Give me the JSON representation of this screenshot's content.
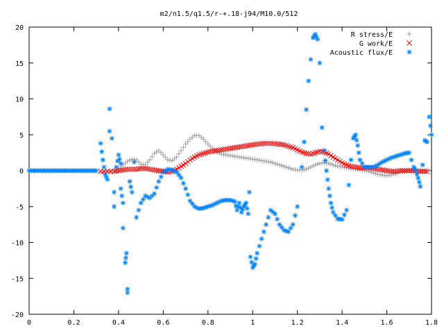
{
  "chart_data": {
    "type": "scatter",
    "title": "m2/n1.5/q1.5/r-+.18-j94/M10.0/512",
    "xlabel": "",
    "ylabel": "",
    "xlim": [
      0,
      1.8
    ],
    "ylim": [
      -20,
      20
    ],
    "x_ticks": [
      0,
      0.2,
      0.4,
      0.6,
      0.8,
      1,
      1.2,
      1.4,
      1.6,
      1.8
    ],
    "x_tick_labels": [
      "0",
      "0.2",
      "0.4",
      "0.6",
      "0.8",
      "1",
      "1.2",
      "1.4",
      "1.6",
      "1.8"
    ],
    "y_ticks": [
      -20,
      -15,
      -10,
      -5,
      0,
      5,
      10,
      15,
      20
    ],
    "y_tick_labels": [
      "-20",
      "-15",
      "-10",
      "-5",
      "0",
      "5",
      "10",
      "15",
      "20"
    ],
    "grid": false,
    "legend_position": "top-right",
    "series": [
      {
        "name": "R stress/E",
        "marker": "+",
        "color": "#a0a0a0",
        "points": [
          [
            0.32,
            -0.2
          ],
          [
            0.35,
            -0.1
          ],
          [
            0.38,
            0.0
          ],
          [
            0.4,
            0.3
          ],
          [
            0.42,
            0.8
          ],
          [
            0.44,
            1.3
          ],
          [
            0.46,
            1.6
          ],
          [
            0.48,
            1.5
          ],
          [
            0.5,
            0.9
          ],
          [
            0.52,
            0.8
          ],
          [
            0.54,
            1.5
          ],
          [
            0.56,
            2.4
          ],
          [
            0.58,
            2.8
          ],
          [
            0.6,
            2.2
          ],
          [
            0.62,
            1.5
          ],
          [
            0.64,
            1.4
          ],
          [
            0.66,
            1.9
          ],
          [
            0.68,
            2.8
          ],
          [
            0.7,
            3.7
          ],
          [
            0.72,
            4.4
          ],
          [
            0.74,
            4.9
          ],
          [
            0.76,
            4.9
          ],
          [
            0.78,
            4.4
          ],
          [
            0.8,
            3.7
          ],
          [
            0.82,
            3.1
          ],
          [
            0.84,
            2.6
          ],
          [
            0.86,
            2.3
          ],
          [
            0.88,
            2.2
          ],
          [
            0.9,
            2.1
          ],
          [
            0.92,
            2.0
          ],
          [
            0.94,
            1.9
          ],
          [
            0.96,
            1.8
          ],
          [
            0.98,
            1.7
          ],
          [
            1.0,
            1.6
          ],
          [
            1.02,
            1.5
          ],
          [
            1.04,
            1.4
          ],
          [
            1.06,
            1.3
          ],
          [
            1.08,
            1.2
          ],
          [
            1.1,
            1.0
          ],
          [
            1.12,
            0.8
          ],
          [
            1.14,
            0.6
          ],
          [
            1.16,
            0.4
          ],
          [
            1.18,
            0.2
          ],
          [
            1.2,
            0.1
          ],
          [
            1.22,
            0.05
          ],
          [
            1.24,
            0.2
          ],
          [
            1.26,
            0.5
          ],
          [
            1.28,
            0.8
          ],
          [
            1.3,
            1.0
          ],
          [
            1.32,
            1.1
          ],
          [
            1.34,
            1.0
          ],
          [
            1.36,
            0.8
          ],
          [
            1.38,
            0.6
          ],
          [
            1.4,
            0.5
          ],
          [
            1.42,
            0.4
          ],
          [
            1.44,
            0.3
          ],
          [
            1.46,
            0.2
          ],
          [
            1.48,
            0.1
          ],
          [
            1.5,
            0.0
          ],
          [
            1.52,
            -0.1
          ],
          [
            1.54,
            -0.3
          ],
          [
            1.56,
            -0.5
          ],
          [
            1.58,
            -0.6
          ],
          [
            1.6,
            -0.7
          ],
          [
            1.62,
            -0.6
          ],
          [
            1.64,
            -0.4
          ],
          [
            1.66,
            -0.2
          ],
          [
            1.68,
            0.0
          ],
          [
            1.7,
            0.1
          ],
          [
            1.72,
            0.0
          ],
          [
            1.74,
            0.0
          ],
          [
            1.76,
            0.0
          ],
          [
            1.78,
            0.0
          ]
        ]
      },
      {
        "name": "G work/E",
        "marker": "x",
        "color": "#ff0000",
        "points": [
          [
            0.32,
            -0.1
          ],
          [
            0.35,
            -0.1
          ],
          [
            0.38,
            -0.1
          ],
          [
            0.4,
            0.0
          ],
          [
            0.42,
            0.1
          ],
          [
            0.44,
            0.2
          ],
          [
            0.46,
            0.2
          ],
          [
            0.48,
            0.2
          ],
          [
            0.5,
            0.3
          ],
          [
            0.52,
            0.3
          ],
          [
            0.54,
            0.2
          ],
          [
            0.56,
            0.1
          ],
          [
            0.58,
            0.0
          ],
          [
            0.6,
            -0.1
          ],
          [
            0.62,
            -0.2
          ],
          [
            0.64,
            -0.1
          ],
          [
            0.66,
            0.2
          ],
          [
            0.68,
            0.6
          ],
          [
            0.7,
            1.0
          ],
          [
            0.72,
            1.5
          ],
          [
            0.74,
            1.9
          ],
          [
            0.76,
            2.2
          ],
          [
            0.78,
            2.4
          ],
          [
            0.8,
            2.6
          ],
          [
            0.82,
            2.7
          ],
          [
            0.84,
            2.8
          ],
          [
            0.86,
            2.9
          ],
          [
            0.88,
            3.0
          ],
          [
            0.9,
            3.1
          ],
          [
            0.92,
            3.2
          ],
          [
            0.94,
            3.3
          ],
          [
            0.96,
            3.4
          ],
          [
            0.98,
            3.5
          ],
          [
            1.0,
            3.6
          ],
          [
            1.02,
            3.7
          ],
          [
            1.04,
            3.75
          ],
          [
            1.06,
            3.8
          ],
          [
            1.08,
            3.8
          ],
          [
            1.1,
            3.75
          ],
          [
            1.12,
            3.7
          ],
          [
            1.14,
            3.6
          ],
          [
            1.16,
            3.4
          ],
          [
            1.18,
            3.2
          ],
          [
            1.2,
            2.9
          ],
          [
            1.22,
            2.6
          ],
          [
            1.24,
            2.4
          ],
          [
            1.26,
            2.3
          ],
          [
            1.28,
            2.5
          ],
          [
            1.3,
            2.7
          ],
          [
            1.32,
            2.6
          ],
          [
            1.34,
            2.3
          ],
          [
            1.36,
            1.9
          ],
          [
            1.38,
            1.5
          ],
          [
            1.4,
            1.1
          ],
          [
            1.42,
            0.8
          ],
          [
            1.44,
            0.6
          ],
          [
            1.46,
            0.5
          ],
          [
            1.48,
            0.4
          ],
          [
            1.5,
            0.4
          ],
          [
            1.52,
            0.4
          ],
          [
            1.54,
            0.3
          ],
          [
            1.56,
            0.2
          ],
          [
            1.58,
            0.1
          ],
          [
            1.6,
            0.0
          ],
          [
            1.62,
            -0.1
          ],
          [
            1.64,
            -0.1
          ],
          [
            1.66,
            0.0
          ],
          [
            1.68,
            0.0
          ],
          [
            1.7,
            0.0
          ],
          [
            1.72,
            0.0
          ],
          [
            1.74,
            -0.1
          ],
          [
            1.76,
            -0.1
          ],
          [
            1.78,
            -0.1
          ]
        ]
      },
      {
        "name": "Acoustic flux/E",
        "marker": "*",
        "color": "#0080ff",
        "points": [
          [
            0.0,
            0.0
          ],
          [
            0.02,
            0.0
          ],
          [
            0.04,
            0.0
          ],
          [
            0.06,
            0.0
          ],
          [
            0.08,
            0.0
          ],
          [
            0.1,
            0.0
          ],
          [
            0.12,
            0.0
          ],
          [
            0.14,
            0.0
          ],
          [
            0.16,
            0.0
          ],
          [
            0.18,
            0.0
          ],
          [
            0.2,
            0.0
          ],
          [
            0.22,
            0.0
          ],
          [
            0.24,
            0.0
          ],
          [
            0.26,
            0.0
          ],
          [
            0.28,
            0.0
          ],
          [
            0.3,
            0.0
          ],
          [
            0.32,
            3.8
          ],
          [
            0.33,
            1.5
          ],
          [
            0.34,
            -0.5
          ],
          [
            0.35,
            -1.2
          ],
          [
            0.36,
            5.5
          ],
          [
            0.36,
            8.6
          ],
          [
            0.37,
            4.5
          ],
          [
            0.38,
            -3.0
          ],
          [
            0.38,
            -5.0
          ],
          [
            0.39,
            0.5
          ],
          [
            0.4,
            2.2
          ],
          [
            0.41,
            1.0
          ],
          [
            0.41,
            -2.5
          ],
          [
            0.42,
            -4.5
          ],
          [
            0.42,
            -8.0
          ],
          [
            0.43,
            -12.8
          ],
          [
            0.435,
            -11.5
          ],
          [
            0.44,
            -16.5
          ],
          [
            0.44,
            -17.0
          ],
          [
            0.45,
            -1.5
          ],
          [
            0.46,
            -3.0
          ],
          [
            0.47,
            1.2
          ],
          [
            0.48,
            -6.5
          ],
          [
            0.5,
            -4.5
          ],
          [
            0.52,
            -3.5
          ],
          [
            0.54,
            -3.8
          ],
          [
            0.56,
            -3.2
          ],
          [
            0.58,
            -1.5
          ],
          [
            0.6,
            -0.2
          ],
          [
            0.62,
            0.2
          ],
          [
            0.64,
            0.1
          ],
          [
            0.66,
            -0.2
          ],
          [
            0.68,
            -1.0
          ],
          [
            0.7,
            -2.5
          ],
          [
            0.72,
            -4.2
          ],
          [
            0.74,
            -5.0
          ],
          [
            0.76,
            -5.3
          ],
          [
            0.78,
            -5.2
          ],
          [
            0.8,
            -5.0
          ],
          [
            0.82,
            -4.8
          ],
          [
            0.84,
            -4.5
          ],
          [
            0.86,
            -4.2
          ],
          [
            0.88,
            -4.1
          ],
          [
            0.9,
            -4.1
          ],
          [
            0.92,
            -4.3
          ],
          [
            0.93,
            -5.5
          ],
          [
            0.94,
            -4.5
          ],
          [
            0.95,
            -5.8
          ],
          [
            0.96,
            -5.0
          ],
          [
            0.97,
            -4.5
          ],
          [
            0.98,
            -6.0
          ],
          [
            0.985,
            -3.0
          ],
          [
            0.99,
            -12.0
          ],
          [
            1.0,
            -13.5
          ],
          [
            1.01,
            -13.0
          ],
          [
            1.02,
            -11.5
          ],
          [
            1.04,
            -9.5
          ],
          [
            1.06,
            -7.5
          ],
          [
            1.08,
            -5.5
          ],
          [
            1.1,
            -6.0
          ],
          [
            1.12,
            -7.5
          ],
          [
            1.14,
            -8.3
          ],
          [
            1.16,
            -8.5
          ],
          [
            1.18,
            -7.5
          ],
          [
            1.2,
            -5.0
          ],
          [
            1.22,
            0.5
          ],
          [
            1.23,
            4.0
          ],
          [
            1.24,
            8.5
          ],
          [
            1.25,
            12.5
          ],
          [
            1.26,
            15.5
          ],
          [
            1.27,
            18.5
          ],
          [
            1.28,
            19.0
          ],
          [
            1.29,
            18.3
          ],
          [
            1.3,
            15.0
          ],
          [
            1.31,
            6.0
          ],
          [
            1.32,
            2.8
          ],
          [
            1.33,
            0.0
          ],
          [
            1.34,
            -2.5
          ],
          [
            1.35,
            -4.5
          ],
          [
            1.36,
            -5.8
          ],
          [
            1.38,
            -6.7
          ],
          [
            1.4,
            -6.8
          ],
          [
            1.42,
            -5.5
          ],
          [
            1.43,
            -2.0
          ],
          [
            1.44,
            1.5
          ],
          [
            1.45,
            4.5
          ],
          [
            1.46,
            5.0
          ],
          [
            1.47,
            3.5
          ],
          [
            1.48,
            1.5
          ],
          [
            1.5,
            0.5
          ],
          [
            1.52,
            0.5
          ],
          [
            1.54,
            0.5
          ],
          [
            1.56,
            0.8
          ],
          [
            1.58,
            1.2
          ],
          [
            1.6,
            1.5
          ],
          [
            1.62,
            1.8
          ],
          [
            1.64,
            2.0
          ],
          [
            1.66,
            2.2
          ],
          [
            1.68,
            2.4
          ],
          [
            1.7,
            2.5
          ],
          [
            1.72,
            0.5
          ],
          [
            1.73,
            0.0
          ],
          [
            1.74,
            -1.0
          ],
          [
            1.75,
            -2.2
          ],
          [
            1.76,
            0.8
          ],
          [
            1.77,
            4.2
          ],
          [
            1.78,
            4.0
          ],
          [
            1.79,
            7.5
          ],
          [
            1.8,
            5.0
          ]
        ]
      }
    ]
  }
}
